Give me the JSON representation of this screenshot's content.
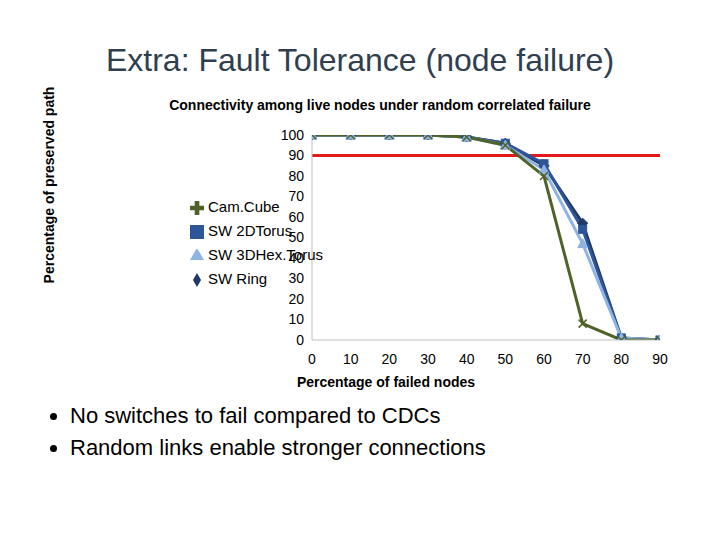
{
  "chart_data": {
    "type": "line",
    "slide_title": "Extra: Fault Tolerance (node failure)",
    "title": "Connectivity among live nodes under random correlated failure",
    "x_label": "Percentage of failed nodes",
    "y_label": "Percentage of preserved path",
    "x": [
      0,
      10,
      20,
      30,
      40,
      50,
      60,
      70,
      80,
      90
    ],
    "series": [
      {
        "name": "SW Ring",
        "color": "#1f3864",
        "marker": "diamond",
        "values": [
          100,
          100,
          100,
          100,
          99,
          96,
          85,
          57,
          1,
          0
        ]
      },
      {
        "name": "SW 2DTorus",
        "color": "#2e5597",
        "marker": "square",
        "values": [
          100,
          100,
          100,
          100,
          99,
          96,
          86,
          54,
          1,
          0
        ]
      },
      {
        "name": "SW 3DHex.Torus",
        "color": "#8eb4e3",
        "marker": "triangle",
        "values": [
          100,
          100,
          100,
          100,
          99,
          95,
          83,
          47,
          1,
          0
        ]
      },
      {
        "name": "Cam.Cube",
        "color": "#4f6228",
        "marker": "x",
        "values": [
          100,
          100,
          100,
          100,
          99,
          95,
          80,
          8,
          0,
          0
        ]
      }
    ],
    "xlim": [
      0,
      90
    ],
    "xticks": [
      0,
      10,
      20,
      30,
      40,
      50,
      60,
      70,
      80,
      90
    ],
    "ylim": [
      0,
      100
    ],
    "yticks": [
      0,
      10,
      20,
      30,
      40,
      50,
      60,
      70,
      80,
      90,
      100
    ],
    "grid": false,
    "legend": "left",
    "reference_lines": [
      {
        "value": 90,
        "color": "#e31a1c"
      }
    ],
    "bullets": [
      "No switches to fail compared to CDCs",
      "Random links enable stronger connections"
    ]
  }
}
